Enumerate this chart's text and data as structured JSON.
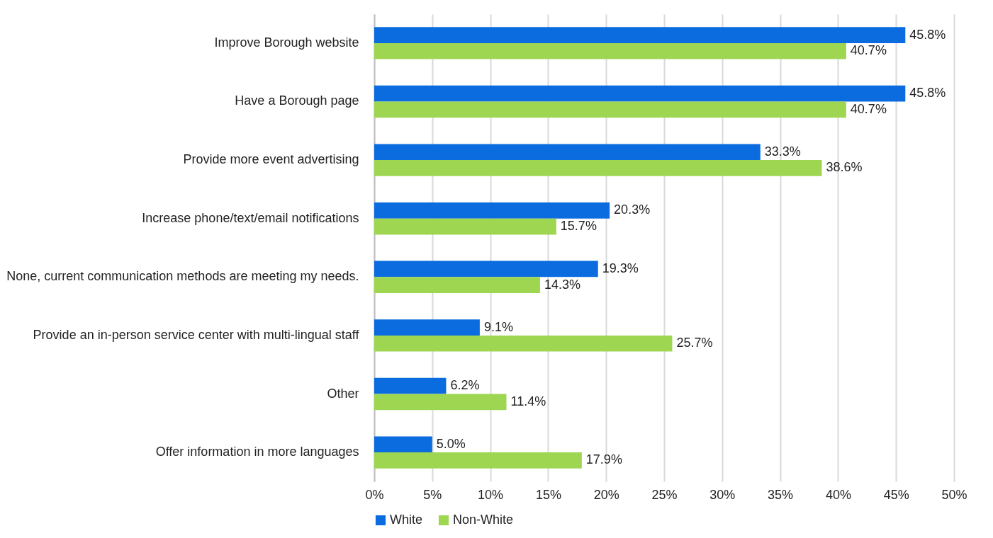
{
  "chart_data": {
    "type": "bar",
    "orientation": "horizontal",
    "categories": [
      "Improve Borough website",
      "Have a Borough page",
      "Provide more event advertising",
      "Increase phone/text/email notifications",
      "None, current communication methods are meeting my needs.",
      "Provide an in-person service center with multi-lingual staff",
      "Other",
      "Offer information in more languages"
    ],
    "series": [
      {
        "name": "White",
        "color": "#0a6cde",
        "values": [
          45.8,
          45.8,
          33.3,
          20.3,
          19.3,
          9.1,
          6.2,
          5.0
        ],
        "value_labels": [
          "45.8%",
          "45.8%",
          "33.3%",
          "20.3%",
          "19.3%",
          "9.1%",
          "6.2%",
          "5.0%"
        ]
      },
      {
        "name": "Non-White",
        "color": "#9ed652",
        "values": [
          40.7,
          40.7,
          38.6,
          15.7,
          14.3,
          25.7,
          11.4,
          17.9
        ],
        "value_labels": [
          "40.7%",
          "40.7%",
          "38.6%",
          "15.7%",
          "14.3%",
          "25.7%",
          "11.4%",
          "17.9%"
        ]
      }
    ],
    "xlim": [
      0,
      50
    ],
    "xticks": [
      {
        "value": 0,
        "label": "0%"
      },
      {
        "value": 5,
        "label": "5%"
      },
      {
        "value": 10,
        "label": "10%"
      },
      {
        "value": 15,
        "label": "15%"
      },
      {
        "value": 20,
        "label": "20%"
      },
      {
        "value": 25,
        "label": "25%"
      },
      {
        "value": 30,
        "label": "30%"
      },
      {
        "value": 35,
        "label": "35%"
      },
      {
        "value": 40,
        "label": "40%"
      },
      {
        "value": 45,
        "label": "45%"
      },
      {
        "value": 50,
        "label": "50%"
      }
    ],
    "grid": "x",
    "legend": "bottom"
  }
}
